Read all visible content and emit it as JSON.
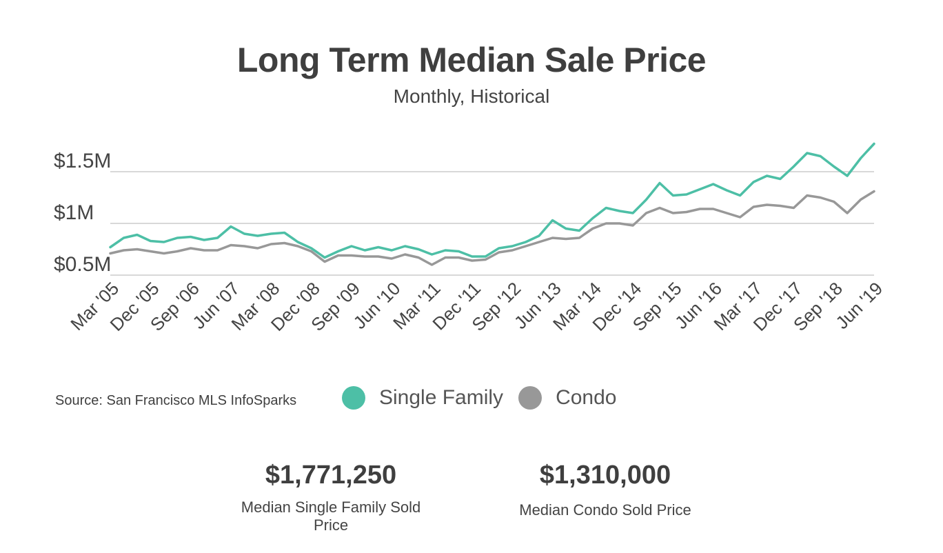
{
  "title": "Long Term Median Sale Price",
  "subtitle": "Monthly, Historical",
  "source": "Source:  San Francisco MLS InfoSparks",
  "colors": {
    "single_family": "#4dbfa6",
    "condo": "#989898",
    "grid": "#cccccc",
    "text": "#444444"
  },
  "legend": [
    {
      "label": "Single Family",
      "color": "#4dbfa6"
    },
    {
      "label": "Condo",
      "color": "#989898"
    }
  ],
  "stats": [
    {
      "value": "$1,771,250",
      "label": "Median Single Family Sold Price"
    },
    {
      "value": "$1,310,000",
      "label": "Median Condo Sold Price"
    }
  ],
  "chart_data": {
    "type": "line",
    "start": "Mar '05",
    "end": "Jun '19",
    "x_tick_labels": [
      "Mar '05",
      "Dec '05",
      "Sep '06",
      "Jun '07",
      "Mar '08",
      "Dec '08",
      "Sep '09",
      "Jun '10",
      "Mar '11",
      "Dec '11",
      "Sep '12",
      "Jun '13",
      "Mar '14",
      "Dec '14",
      "Sep '15",
      "Jun '16",
      "Mar '17",
      "Dec '17",
      "Sep '18",
      "Jun '19"
    ],
    "y_ticks": [
      0.5,
      1.0,
      1.5
    ],
    "y_tick_labels": [
      "$0.5M",
      "$1M",
      "$1.5M"
    ],
    "ylim": [
      0.5,
      1.5
    ],
    "grid": true,
    "series": [
      {
        "name": "Single Family",
        "color": "#4dbfa6",
        "anchors": [
          [
            "Mar '05",
            0.77
          ],
          [
            "Jun '05",
            0.86
          ],
          [
            "Sep '05",
            0.89
          ],
          [
            "Dec '05",
            0.83
          ],
          [
            "Mar '06",
            0.82
          ],
          [
            "Jun '06",
            0.86
          ],
          [
            "Sep '06",
            0.87
          ],
          [
            "Dec '06",
            0.84
          ],
          [
            "Mar '07",
            0.86
          ],
          [
            "Jun '07",
            0.97
          ],
          [
            "Sep '07",
            0.9
          ],
          [
            "Dec '07",
            0.88
          ],
          [
            "Mar '08",
            0.9
          ],
          [
            "Jun '08",
            0.91
          ],
          [
            "Sep '08",
            0.82
          ],
          [
            "Dec '08",
            0.76
          ],
          [
            "Mar '09",
            0.67
          ],
          [
            "Jun '09",
            0.73
          ],
          [
            "Sep '09",
            0.78
          ],
          [
            "Dec '09",
            0.74
          ],
          [
            "Mar '10",
            0.77
          ],
          [
            "Jun '10",
            0.74
          ],
          [
            "Sep '10",
            0.78
          ],
          [
            "Dec '10",
            0.75
          ],
          [
            "Mar '11",
            0.7
          ],
          [
            "Jun '11",
            0.74
          ],
          [
            "Sep '11",
            0.73
          ],
          [
            "Dec '11",
            0.68
          ],
          [
            "Mar '12",
            0.68
          ],
          [
            "Jun '12",
            0.76
          ],
          [
            "Sep '12",
            0.78
          ],
          [
            "Dec '12",
            0.82
          ],
          [
            "Mar '13",
            0.88
          ],
          [
            "Jun '13",
            1.03
          ],
          [
            "Sep '13",
            0.95
          ],
          [
            "Dec '13",
            0.93
          ],
          [
            "Mar '14",
            1.05
          ],
          [
            "Jun '14",
            1.15
          ],
          [
            "Sep '14",
            1.12
          ],
          [
            "Dec '14",
            1.1
          ],
          [
            "Mar '15",
            1.23
          ],
          [
            "Jun '15",
            1.39
          ],
          [
            "Sep '15",
            1.27
          ],
          [
            "Dec '15",
            1.28
          ],
          [
            "Mar '16",
            1.33
          ],
          [
            "Jun '16",
            1.38
          ],
          [
            "Sep '16",
            1.32
          ],
          [
            "Dec '16",
            1.27
          ],
          [
            "Mar '17",
            1.4
          ],
          [
            "Jun '17",
            1.46
          ],
          [
            "Sep '17",
            1.43
          ],
          [
            "Dec '17",
            1.55
          ],
          [
            "Mar '18",
            1.68
          ],
          [
            "Jun '18",
            1.65
          ],
          [
            "Sep '18",
            1.55
          ],
          [
            "Dec '18",
            1.46
          ],
          [
            "Mar '19",
            1.63
          ],
          [
            "Jun '19",
            1.77
          ]
        ]
      },
      {
        "name": "Condo",
        "color": "#989898",
        "anchors": [
          [
            "Mar '05",
            0.71
          ],
          [
            "Jun '05",
            0.74
          ],
          [
            "Sep '05",
            0.75
          ],
          [
            "Dec '05",
            0.73
          ],
          [
            "Mar '06",
            0.71
          ],
          [
            "Jun '06",
            0.73
          ],
          [
            "Sep '06",
            0.76
          ],
          [
            "Dec '06",
            0.74
          ],
          [
            "Mar '07",
            0.74
          ],
          [
            "Jun '07",
            0.79
          ],
          [
            "Sep '07",
            0.78
          ],
          [
            "Dec '07",
            0.76
          ],
          [
            "Mar '08",
            0.8
          ],
          [
            "Jun '08",
            0.81
          ],
          [
            "Sep '08",
            0.78
          ],
          [
            "Dec '08",
            0.73
          ],
          [
            "Mar '09",
            0.63
          ],
          [
            "Jun '09",
            0.69
          ],
          [
            "Sep '09",
            0.69
          ],
          [
            "Dec '09",
            0.68
          ],
          [
            "Mar '10",
            0.68
          ],
          [
            "Jun '10",
            0.66
          ],
          [
            "Sep '10",
            0.7
          ],
          [
            "Dec '10",
            0.67
          ],
          [
            "Mar '11",
            0.6
          ],
          [
            "Jun '11",
            0.67
          ],
          [
            "Sep '11",
            0.67
          ],
          [
            "Dec '11",
            0.64
          ],
          [
            "Mar '12",
            0.65
          ],
          [
            "Jun '12",
            0.72
          ],
          [
            "Sep '12",
            0.74
          ],
          [
            "Dec '12",
            0.78
          ],
          [
            "Mar '13",
            0.82
          ],
          [
            "Jun '13",
            0.86
          ],
          [
            "Sep '13",
            0.85
          ],
          [
            "Dec '13",
            0.86
          ],
          [
            "Mar '14",
            0.95
          ],
          [
            "Jun '14",
            1.0
          ],
          [
            "Sep '14",
            1.0
          ],
          [
            "Dec '14",
            0.98
          ],
          [
            "Mar '15",
            1.1
          ],
          [
            "Jun '15",
            1.15
          ],
          [
            "Sep '15",
            1.1
          ],
          [
            "Dec '15",
            1.11
          ],
          [
            "Mar '16",
            1.14
          ],
          [
            "Jun '16",
            1.14
          ],
          [
            "Sep '16",
            1.1
          ],
          [
            "Dec '16",
            1.06
          ],
          [
            "Mar '17",
            1.16
          ],
          [
            "Jun '17",
            1.18
          ],
          [
            "Sep '17",
            1.17
          ],
          [
            "Dec '17",
            1.15
          ],
          [
            "Mar '18",
            1.27
          ],
          [
            "Jun '18",
            1.25
          ],
          [
            "Sep '18",
            1.21
          ],
          [
            "Dec '18",
            1.1
          ],
          [
            "Mar '19",
            1.23
          ],
          [
            "Jun '19",
            1.31
          ]
        ]
      }
    ]
  }
}
